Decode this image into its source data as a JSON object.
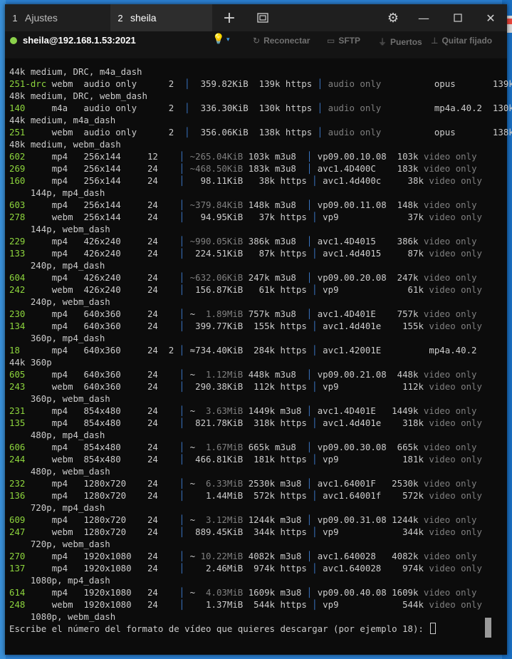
{
  "tabs": [
    {
      "num": "1",
      "label": "Ajustes"
    },
    {
      "num": "2",
      "label": "sheila"
    }
  ],
  "session": {
    "host": "sheila@192.168.1.53:2021",
    "status_color": "#8bd14b"
  },
  "actions": {
    "reconnect": "Reconectar",
    "sftp": "SFTP",
    "ports": "Puertos",
    "unpin": "Quitar fijado"
  },
  "icons": {
    "plus": "plus-icon",
    "new_window": "new-window-icon",
    "gear": "gear-icon",
    "minimize": "minimize-icon",
    "maximize": "maximize-icon",
    "close": "close-icon",
    "bulb": "lightbulb-icon"
  },
  "terminal": {
    "lines": [
      [
        [
          "44k medium, DRC, m4a_dash",
          ""
        ]
      ],
      [
        [
          "251-drc",
          "g"
        ],
        [
          " webm  audio only      2  ",
          ""
        ],
        [
          "│",
          "bar"
        ],
        [
          "  359.82KiB  139k https ",
          ""
        ],
        [
          "│",
          "bar"
        ],
        [
          " ",
          ""
        ],
        [
          "audio only",
          "dim"
        ],
        [
          "          opus       139k",
          ""
        ]
      ],
      [
        [
          "48k medium, DRC, webm_dash",
          ""
        ]
      ],
      [
        [
          "140    ",
          "g"
        ],
        [
          " m4a   audio only      2  ",
          ""
        ],
        [
          "│",
          "bar"
        ],
        [
          "  336.30KiB  130k https ",
          ""
        ],
        [
          "│",
          "bar"
        ],
        [
          " ",
          ""
        ],
        [
          "audio only",
          "dim"
        ],
        [
          "          mp4a.40.2  130k",
          ""
        ]
      ],
      [
        [
          "44k medium, m4a_dash",
          ""
        ]
      ],
      [
        [
          "251    ",
          "g"
        ],
        [
          " webm  audio only      2  ",
          ""
        ],
        [
          "│",
          "bar"
        ],
        [
          "  356.06KiB  138k https ",
          ""
        ],
        [
          "│",
          "bar"
        ],
        [
          " ",
          ""
        ],
        [
          "audio only",
          "dim"
        ],
        [
          "          opus       138k",
          ""
        ]
      ],
      [
        [
          "48k medium, webm_dash",
          ""
        ]
      ],
      [
        [
          "602",
          "g"
        ],
        [
          "     mp4   256x144     12    ",
          ""
        ],
        [
          "│",
          "bar"
        ],
        [
          " ",
          ""
        ],
        [
          "~265.04KiB",
          "dim"
        ],
        [
          " 103k m3u8  ",
          ""
        ],
        [
          "│",
          "bar"
        ],
        [
          " vp09.00.10.08  103k ",
          ""
        ],
        [
          "video only",
          "dim"
        ]
      ],
      [
        [
          "269",
          "g"
        ],
        [
          "     mp4   256x144     24    ",
          ""
        ],
        [
          "│",
          "bar"
        ],
        [
          " ",
          ""
        ],
        [
          "~468.50KiB",
          "dim"
        ],
        [
          " 183k m3u8  ",
          ""
        ],
        [
          "│",
          "bar"
        ],
        [
          " avc1.4D400C    183k ",
          ""
        ],
        [
          "video only",
          "dim"
        ]
      ],
      [
        [
          "160",
          "g"
        ],
        [
          "     mp4   256x144     24    ",
          ""
        ],
        [
          "│",
          "bar"
        ],
        [
          "   98.11KiB   38k https ",
          ""
        ],
        [
          "│",
          "bar"
        ],
        [
          " avc1.4d400c     38k ",
          ""
        ],
        [
          "video only",
          "dim"
        ]
      ],
      [
        [
          "    144p, mp4_dash",
          ""
        ]
      ],
      [
        [
          "603",
          "g"
        ],
        [
          "     mp4   256x144     24    ",
          ""
        ],
        [
          "│",
          "bar"
        ],
        [
          " ",
          ""
        ],
        [
          "~379.84KiB",
          "dim"
        ],
        [
          " 148k m3u8  ",
          ""
        ],
        [
          "│",
          "bar"
        ],
        [
          " vp09.00.11.08  148k ",
          ""
        ],
        [
          "video only",
          "dim"
        ]
      ],
      [
        [
          "278",
          "g"
        ],
        [
          "     webm  256x144     24    ",
          ""
        ],
        [
          "│",
          "bar"
        ],
        [
          "   94.95KiB   37k https ",
          ""
        ],
        [
          "│",
          "bar"
        ],
        [
          " vp9             37k ",
          ""
        ],
        [
          "video only",
          "dim"
        ]
      ],
      [
        [
          "    144p, webm_dash",
          ""
        ]
      ],
      [
        [
          "229",
          "g"
        ],
        [
          "     mp4   426x240     24    ",
          ""
        ],
        [
          "│",
          "bar"
        ],
        [
          " ",
          ""
        ],
        [
          "~990.05KiB",
          "dim"
        ],
        [
          " 386k m3u8  ",
          ""
        ],
        [
          "│",
          "bar"
        ],
        [
          " avc1.4D4015    386k ",
          ""
        ],
        [
          "video only",
          "dim"
        ]
      ],
      [
        [
          "133",
          "g"
        ],
        [
          "     mp4   426x240     24    ",
          ""
        ],
        [
          "│",
          "bar"
        ],
        [
          "  224.51KiB   87k https ",
          ""
        ],
        [
          "│",
          "bar"
        ],
        [
          " avc1.4d4015     87k ",
          ""
        ],
        [
          "video only",
          "dim"
        ]
      ],
      [
        [
          "    240p, mp4_dash",
          ""
        ]
      ],
      [
        [
          "604",
          "g"
        ],
        [
          "     mp4   426x240     24    ",
          ""
        ],
        [
          "│",
          "bar"
        ],
        [
          " ",
          ""
        ],
        [
          "~632.06KiB",
          "dim"
        ],
        [
          " 247k m3u8  ",
          ""
        ],
        [
          "│",
          "bar"
        ],
        [
          " vp09.00.20.08  247k ",
          ""
        ],
        [
          "video only",
          "dim"
        ]
      ],
      [
        [
          "242",
          "g"
        ],
        [
          "     webm  426x240     24    ",
          ""
        ],
        [
          "│",
          "bar"
        ],
        [
          "  156.87KiB   61k https ",
          ""
        ],
        [
          "│",
          "bar"
        ],
        [
          " vp9             61k ",
          ""
        ],
        [
          "video only",
          "dim"
        ]
      ],
      [
        [
          "    240p, webm_dash",
          ""
        ]
      ],
      [
        [
          "230",
          "g"
        ],
        [
          "     mp4   640x360     24    ",
          ""
        ],
        [
          "│",
          "bar"
        ],
        [
          " ~  ",
          ""
        ],
        [
          "1.89MiB",
          "dim"
        ],
        [
          " 757k m3u8  ",
          ""
        ],
        [
          "│",
          "bar"
        ],
        [
          " avc1.4D401E    757k ",
          ""
        ],
        [
          "video only",
          "dim"
        ]
      ],
      [
        [
          "134",
          "g"
        ],
        [
          "     mp4   640x360     24    ",
          ""
        ],
        [
          "│",
          "bar"
        ],
        [
          "  399.77KiB  155k https ",
          ""
        ],
        [
          "│",
          "bar"
        ],
        [
          " avc1.4d401e    155k ",
          ""
        ],
        [
          "video only",
          "dim"
        ]
      ],
      [
        [
          "    360p, mp4_dash",
          ""
        ]
      ],
      [
        [
          "18 ",
          "g"
        ],
        [
          "     mp4   640x360     24  2 ",
          ""
        ],
        [
          "│",
          "bar"
        ],
        [
          " ≈734.40KiB  284k https ",
          ""
        ],
        [
          "│",
          "bar"
        ],
        [
          " avc1.42001E         mp4a.40.2",
          ""
        ]
      ],
      [
        [
          "44k 360p",
          ""
        ]
      ],
      [
        [
          "605",
          "g"
        ],
        [
          "     mp4   640x360     24    ",
          ""
        ],
        [
          "│",
          "bar"
        ],
        [
          " ~  ",
          ""
        ],
        [
          "1.12MiB",
          "dim"
        ],
        [
          " 448k m3u8  ",
          ""
        ],
        [
          "│",
          "bar"
        ],
        [
          " vp09.00.21.08  448k ",
          ""
        ],
        [
          "video only",
          "dim"
        ]
      ],
      [
        [
          "243",
          "g"
        ],
        [
          "     webm  640x360     24    ",
          ""
        ],
        [
          "│",
          "bar"
        ],
        [
          "  290.38KiB  112k https ",
          ""
        ],
        [
          "│",
          "bar"
        ],
        [
          " vp9            112k ",
          ""
        ],
        [
          "video only",
          "dim"
        ]
      ],
      [
        [
          "    360p, webm_dash",
          ""
        ]
      ],
      [
        [
          "231",
          "g"
        ],
        [
          "     mp4   854x480     24    ",
          ""
        ],
        [
          "│",
          "bar"
        ],
        [
          " ~  ",
          ""
        ],
        [
          "3.63MiB",
          "dim"
        ],
        [
          " 1449k m3u8 ",
          ""
        ],
        [
          "│",
          "bar"
        ],
        [
          " avc1.4D401E   1449k ",
          ""
        ],
        [
          "video only",
          "dim"
        ]
      ],
      [
        [
          "135",
          "g"
        ],
        [
          "     mp4   854x480     24    ",
          ""
        ],
        [
          "│",
          "bar"
        ],
        [
          "  821.78KiB  318k https ",
          ""
        ],
        [
          "│",
          "bar"
        ],
        [
          " avc1.4d401e    318k ",
          ""
        ],
        [
          "video only",
          "dim"
        ]
      ],
      [
        [
          "    480p, mp4_dash",
          ""
        ]
      ],
      [
        [
          "606",
          "g"
        ],
        [
          "     mp4   854x480     24    ",
          ""
        ],
        [
          "│",
          "bar"
        ],
        [
          " ~  ",
          ""
        ],
        [
          "1.67MiB",
          "dim"
        ],
        [
          " 665k m3u8  ",
          ""
        ],
        [
          "│",
          "bar"
        ],
        [
          " vp09.00.30.08  665k ",
          ""
        ],
        [
          "video only",
          "dim"
        ]
      ],
      [
        [
          "244",
          "g"
        ],
        [
          "     webm  854x480     24    ",
          ""
        ],
        [
          "│",
          "bar"
        ],
        [
          "  466.81KiB  181k https ",
          ""
        ],
        [
          "│",
          "bar"
        ],
        [
          " vp9            181k ",
          ""
        ],
        [
          "video only",
          "dim"
        ]
      ],
      [
        [
          "    480p, webm_dash",
          ""
        ]
      ],
      [
        [
          "232",
          "g"
        ],
        [
          "     mp4   1280x720    24    ",
          ""
        ],
        [
          "│",
          "bar"
        ],
        [
          " ~  ",
          ""
        ],
        [
          "6.33MiB",
          "dim"
        ],
        [
          " 2530k m3u8 ",
          ""
        ],
        [
          "│",
          "bar"
        ],
        [
          " avc1.64001F   2530k ",
          ""
        ],
        [
          "video only",
          "dim"
        ]
      ],
      [
        [
          "136",
          "g"
        ],
        [
          "     mp4   1280x720    24    ",
          ""
        ],
        [
          "│",
          "bar"
        ],
        [
          "    1.44MiB  572k https ",
          ""
        ],
        [
          "│",
          "bar"
        ],
        [
          " avc1.64001f    572k ",
          ""
        ],
        [
          "video only",
          "dim"
        ]
      ],
      [
        [
          "    720p, mp4_dash",
          ""
        ]
      ],
      [
        [
          "609",
          "g"
        ],
        [
          "     mp4   1280x720    24    ",
          ""
        ],
        [
          "│",
          "bar"
        ],
        [
          " ~  ",
          ""
        ],
        [
          "3.12MiB",
          "dim"
        ],
        [
          " 1244k m3u8 ",
          ""
        ],
        [
          "│",
          "bar"
        ],
        [
          " vp09.00.31.08 1244k ",
          ""
        ],
        [
          "video only",
          "dim"
        ]
      ],
      [
        [
          "247",
          "g"
        ],
        [
          "     webm  1280x720    24    ",
          ""
        ],
        [
          "│",
          "bar"
        ],
        [
          "  889.45KiB  344k https ",
          ""
        ],
        [
          "│",
          "bar"
        ],
        [
          " vp9            344k ",
          ""
        ],
        [
          "video only",
          "dim"
        ]
      ],
      [
        [
          "    720p, webm_dash",
          ""
        ]
      ],
      [
        [
          "270",
          "g"
        ],
        [
          "     mp4   1920x1080   24    ",
          ""
        ],
        [
          "│",
          "bar"
        ],
        [
          " ~ ",
          ""
        ],
        [
          "10.22MiB",
          "dim"
        ],
        [
          " 4082k m3u8 ",
          ""
        ],
        [
          "│",
          "bar"
        ],
        [
          " avc1.640028   4082k ",
          ""
        ],
        [
          "video only",
          "dim"
        ]
      ],
      [
        [
          "137",
          "g"
        ],
        [
          "     mp4   1920x1080   24    ",
          ""
        ],
        [
          "│",
          "bar"
        ],
        [
          "    2.46MiB  974k https ",
          ""
        ],
        [
          "│",
          "bar"
        ],
        [
          " avc1.640028    974k ",
          ""
        ],
        [
          "video only",
          "dim"
        ]
      ],
      [
        [
          "    1080p, mp4_dash",
          ""
        ]
      ],
      [
        [
          "614",
          "g"
        ],
        [
          "     mp4   1920x1080   24    ",
          ""
        ],
        [
          "│",
          "bar"
        ],
        [
          " ~  ",
          ""
        ],
        [
          "4.03MiB",
          "dim"
        ],
        [
          " 1609k m3u8 ",
          ""
        ],
        [
          "│",
          "bar"
        ],
        [
          " vp09.00.40.08 1609k ",
          ""
        ],
        [
          "video only",
          "dim"
        ]
      ],
      [
        [
          "248",
          "g"
        ],
        [
          "     webm  1920x1080   24    ",
          ""
        ],
        [
          "│",
          "bar"
        ],
        [
          "    1.37MiB  544k https ",
          ""
        ],
        [
          "│",
          "bar"
        ],
        [
          " vp9            544k ",
          ""
        ],
        [
          "video only",
          "dim"
        ]
      ],
      [
        [
          "    1080p, webm_dash",
          ""
        ]
      ]
    ],
    "prompt": "Escribe el número del formato de vídeo que quieres descargar (por ejemplo 18): "
  }
}
